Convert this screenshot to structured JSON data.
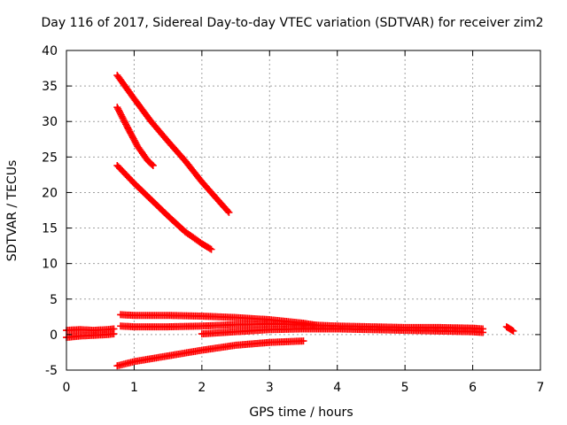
{
  "chart_data": {
    "type": "scatter",
    "title": "Day 116 of 2017, Sidereal Day-to-day VTEC variation (SDTVAR) for receiver zim2",
    "xlabel": "GPS time / hours",
    "ylabel": "SDTVAR / TECUs",
    "xlim": [
      0,
      7
    ],
    "ylim": [
      -5,
      40
    ],
    "x_ticks": [
      0,
      1,
      2,
      3,
      4,
      5,
      6,
      7
    ],
    "y_ticks": [
      -5,
      0,
      5,
      10,
      15,
      20,
      25,
      30,
      35,
      40
    ],
    "x_tick_labels": [
      "0",
      "1",
      "2",
      "3",
      "4",
      "5",
      "6",
      "7"
    ],
    "y_tick_labels": [
      "-5",
      "0",
      "5",
      "10",
      "15",
      "20",
      "25",
      "30",
      "35",
      "40"
    ],
    "grid": true,
    "legend": "none",
    "marker": "plus",
    "color": "#ff0000",
    "series": [
      {
        "x": [
          0.75,
          1.0,
          1.25,
          1.5,
          1.75,
          2.0,
          2.25,
          2.4
        ],
        "y": [
          36.5,
          33.2,
          30.0,
          27.2,
          24.5,
          21.5,
          18.8,
          17.2
        ]
      },
      {
        "x": [
          0.75,
          0.9,
          1.05,
          1.2,
          1.28
        ],
        "y": [
          32.0,
          29.2,
          26.5,
          24.5,
          23.8
        ]
      },
      {
        "x": [
          0.75,
          1.0,
          1.25,
          1.5,
          1.75,
          2.0,
          2.14
        ],
        "y": [
          23.8,
          21.3,
          19.0,
          16.7,
          14.5,
          12.8,
          12.0
        ]
      },
      {
        "x": [
          0,
          0.2,
          0.4,
          0.6,
          0.7
        ],
        "y": [
          0.6,
          0.7,
          0.6,
          0.7,
          0.8
        ]
      },
      {
        "x": [
          0,
          0.2,
          0.4,
          0.6,
          0.7
        ],
        "y": [
          -0.4,
          -0.2,
          -0.1,
          0.0,
          0.1
        ]
      },
      {
        "x": [
          0.8,
          1.0,
          1.5,
          2.0,
          2.5,
          3.0,
          3.5,
          3.7
        ],
        "y": [
          2.8,
          2.7,
          2.7,
          2.6,
          2.4,
          2.1,
          1.6,
          1.3
        ]
      },
      {
        "x": [
          0.8,
          1.0,
          1.5,
          2.0,
          2.5,
          3.0,
          3.5,
          4.0,
          4.5,
          5.0,
          5.5,
          6.0,
          6.15
        ],
        "y": [
          1.2,
          1.1,
          1.1,
          1.2,
          1.4,
          1.5,
          1.4,
          1.2,
          1.1,
          1.0,
          1.0,
          0.9,
          0.8
        ]
      },
      {
        "x": [
          2.0,
          2.5,
          3.0,
          3.5,
          4.0,
          4.5,
          5.0,
          5.5,
          6.0,
          6.15
        ],
        "y": [
          0.1,
          0.4,
          0.7,
          0.8,
          0.8,
          0.7,
          0.6,
          0.5,
          0.4,
          0.3
        ]
      },
      {
        "x": [
          0.75,
          1.0,
          1.5,
          2.0,
          2.5,
          3.0,
          3.5
        ],
        "y": [
          -4.4,
          -3.8,
          -3.0,
          -2.2,
          -1.5,
          -1.1,
          -0.9
        ]
      },
      {
        "x": [
          6.5,
          6.55,
          6.6
        ],
        "y": [
          1.1,
          0.8,
          0.5
        ]
      }
    ]
  }
}
